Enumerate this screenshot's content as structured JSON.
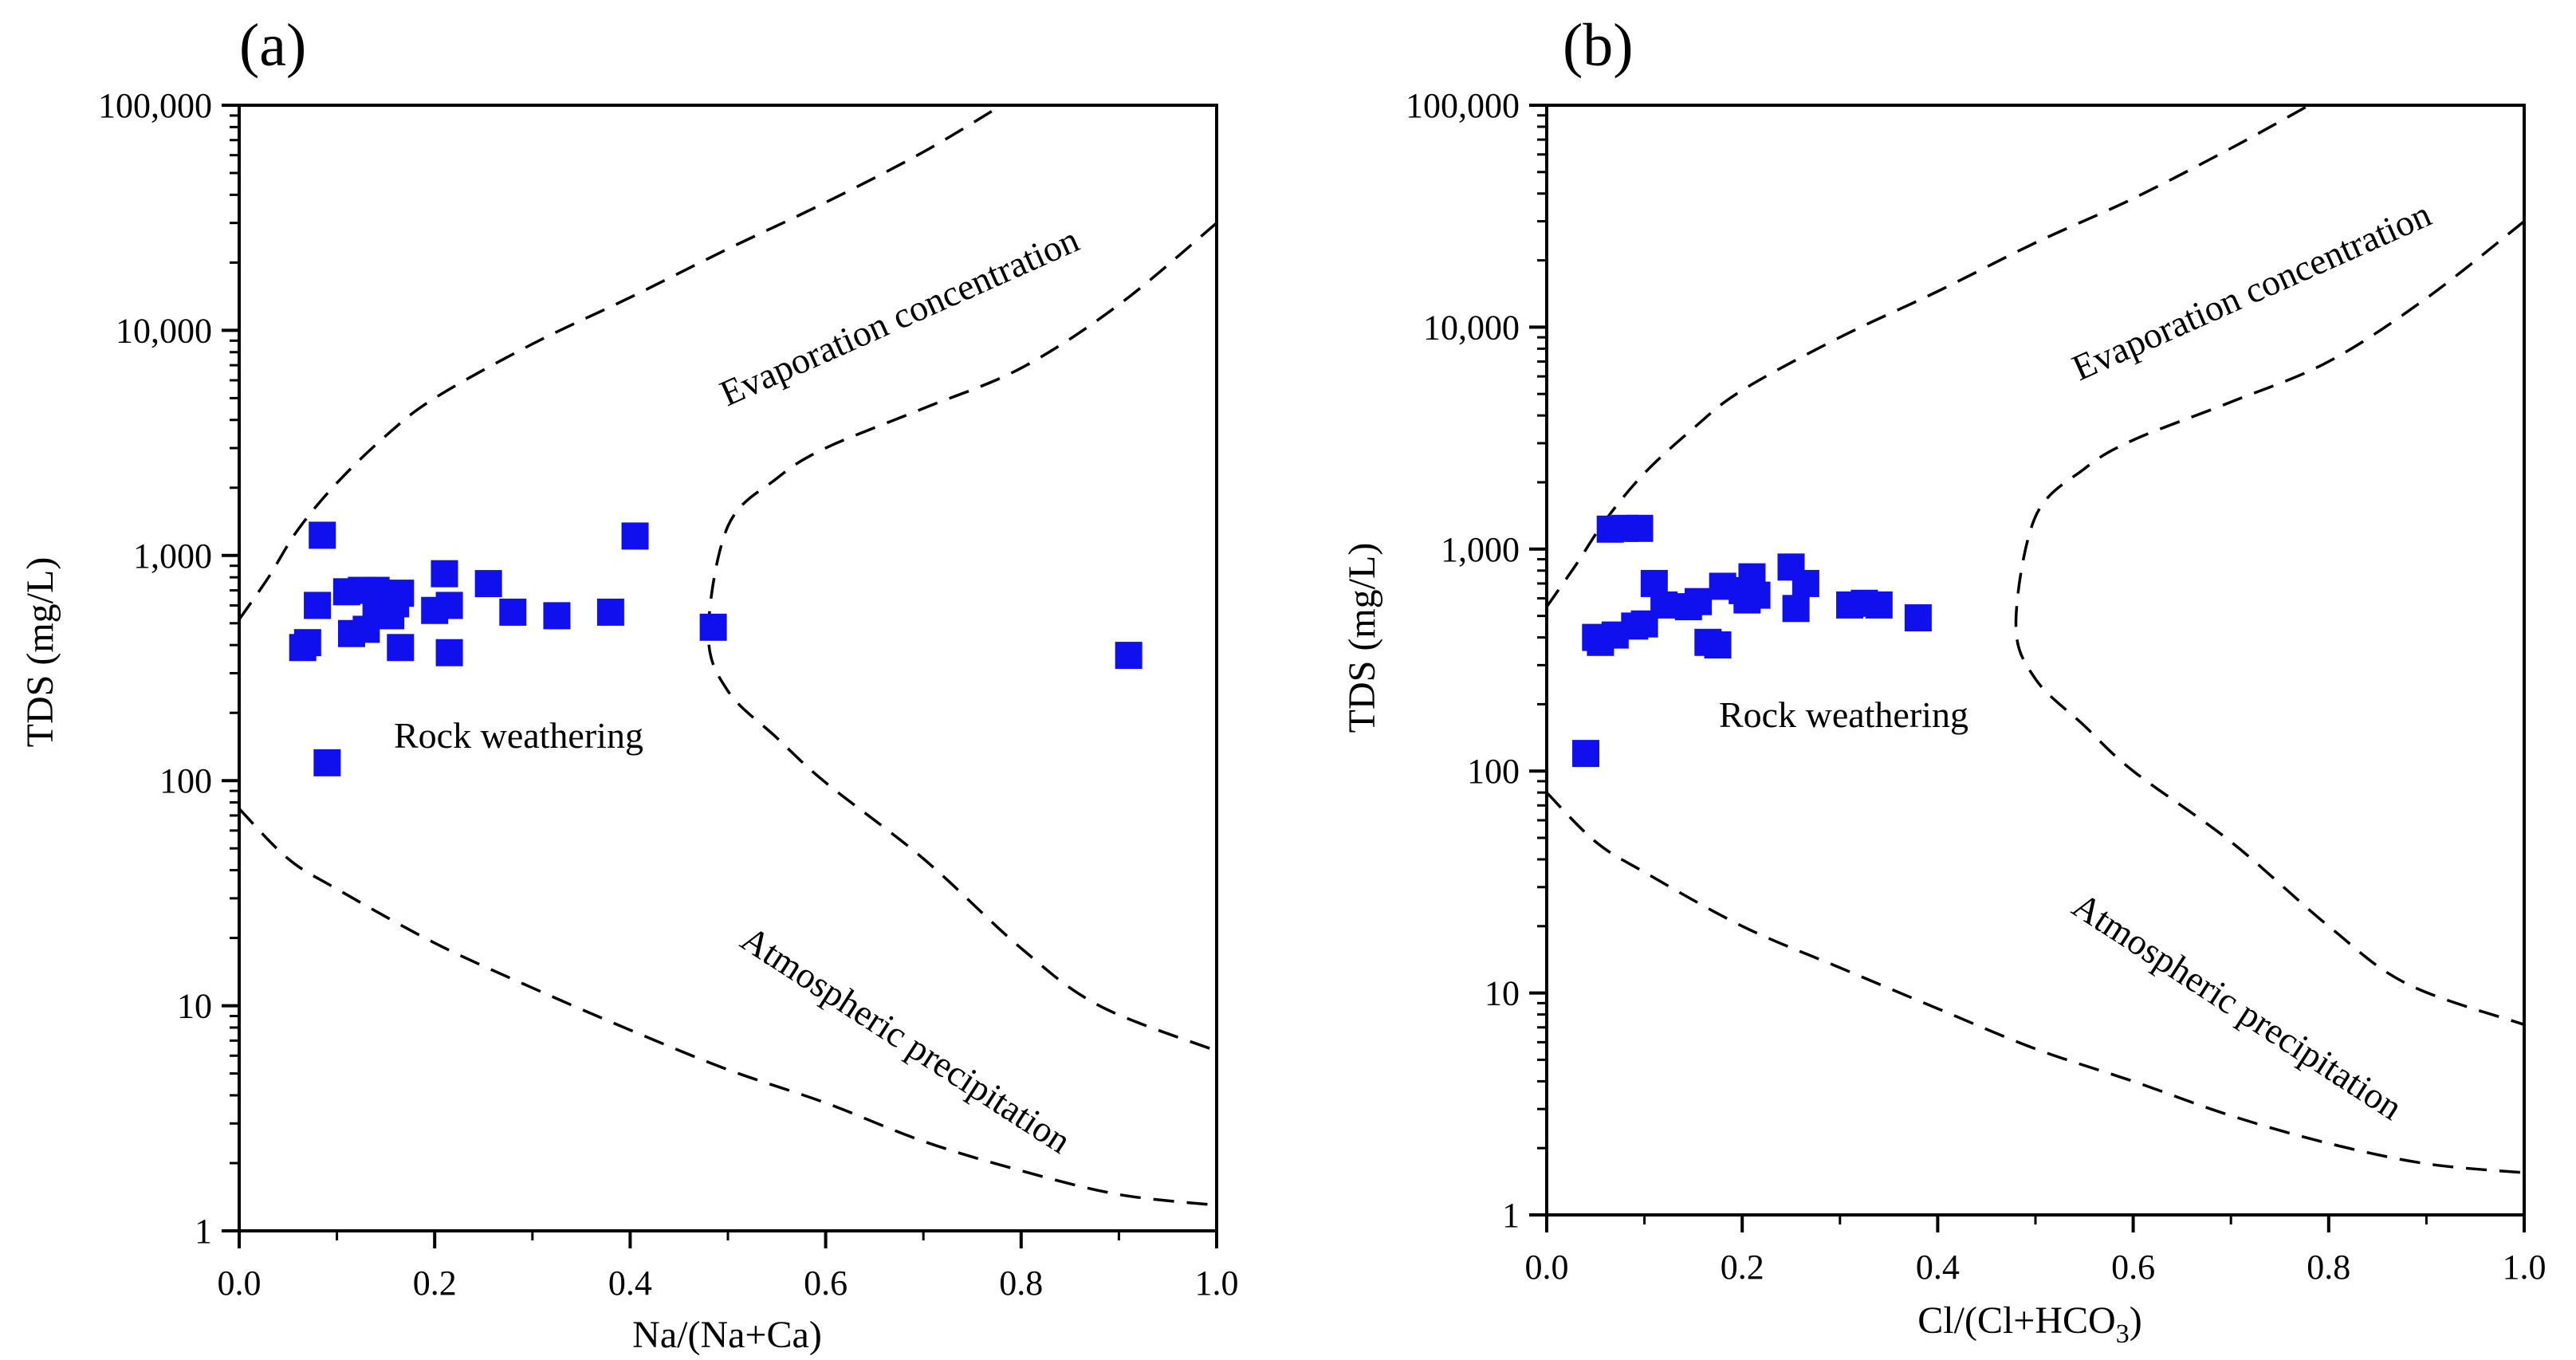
{
  "colors": {
    "point": "#1010ee",
    "axis": "#000000"
  },
  "chart_data": [
    {
      "type": "scatter",
      "panel_label": "(a)",
      "xlabel": "Na/(Na+Ca)",
      "ylabel": "TDS (mg/L)",
      "xlim": [
        0.0,
        1.0
      ],
      "ylim": [
        1,
        100000
      ],
      "yscale": "log",
      "x_ticks": [
        "0.0",
        "0.2",
        "0.4",
        "0.6",
        "0.8",
        "1.0"
      ],
      "y_ticks": [
        "1",
        "10",
        "100",
        "1,000",
        "10,000",
        "100,000"
      ],
      "regions": {
        "evaporation": "Evaporation concentration",
        "rock": "Rock weathering",
        "atmospheric": "Atmospheric precipitation"
      },
      "boundaries": {
        "upper": [
          [
            0.0,
            520
          ],
          [
            0.03,
            800
          ],
          [
            0.06,
            1300
          ],
          [
            0.1,
            2100
          ],
          [
            0.15,
            3400
          ],
          [
            0.2,
            5000
          ],
          [
            0.3,
            8700
          ],
          [
            0.4,
            14000
          ],
          [
            0.5,
            23000
          ],
          [
            0.6,
            37000
          ],
          [
            0.7,
            62000
          ],
          [
            0.78,
            100000
          ]
        ],
        "inner": [
          [
            1.0,
            30000
          ],
          [
            0.9,
            13000
          ],
          [
            0.8,
            6800
          ],
          [
            0.7,
            4500
          ],
          [
            0.6,
            3000
          ],
          [
            0.55,
            2200
          ],
          [
            0.5,
            1350
          ],
          [
            0.48,
            450
          ],
          [
            0.5,
            250
          ],
          [
            0.55,
            155
          ],
          [
            0.6,
            98
          ],
          [
            0.7,
            45
          ],
          [
            0.8,
            18
          ],
          [
            0.88,
            10
          ],
          [
            1.0,
            6.3
          ]
        ],
        "lower": [
          [
            0.0,
            75
          ],
          [
            0.05,
            45
          ],
          [
            0.1,
            33
          ],
          [
            0.2,
            19
          ],
          [
            0.3,
            12
          ],
          [
            0.4,
            7.8
          ],
          [
            0.5,
            5.2
          ],
          [
            0.6,
            3.7
          ],
          [
            0.7,
            2.5
          ],
          [
            0.8,
            1.85
          ],
          [
            0.9,
            1.45
          ],
          [
            1.0,
            1.3
          ]
        ]
      },
      "points": [
        {
          "x": 0.065,
          "y": 390
        },
        {
          "x": 0.07,
          "y": 410
        },
        {
          "x": 0.08,
          "y": 600
        },
        {
          "x": 0.085,
          "y": 1230
        },
        {
          "x": 0.09,
          "y": 120
        },
        {
          "x": 0.11,
          "y": 690
        },
        {
          "x": 0.115,
          "y": 450
        },
        {
          "x": 0.125,
          "y": 700
        },
        {
          "x": 0.13,
          "y": 470
        },
        {
          "x": 0.14,
          "y": 560
        },
        {
          "x": 0.14,
          "y": 700
        },
        {
          "x": 0.145,
          "y": 640
        },
        {
          "x": 0.155,
          "y": 540
        },
        {
          "x": 0.16,
          "y": 610
        },
        {
          "x": 0.165,
          "y": 680
        },
        {
          "x": 0.165,
          "y": 390
        },
        {
          "x": 0.2,
          "y": 570
        },
        {
          "x": 0.21,
          "y": 830
        },
        {
          "x": 0.215,
          "y": 370
        },
        {
          "x": 0.215,
          "y": 600
        },
        {
          "x": 0.255,
          "y": 750
        },
        {
          "x": 0.28,
          "y": 560
        },
        {
          "x": 0.325,
          "y": 540
        },
        {
          "x": 0.38,
          "y": 560
        },
        {
          "x": 0.405,
          "y": 1220
        },
        {
          "x": 0.485,
          "y": 480
        },
        {
          "x": 0.91,
          "y": 360
        }
      ]
    },
    {
      "type": "scatter",
      "panel_label": "(b)",
      "xlabel": "Cl/(Cl+HCO",
      "xlabel_sub": "3",
      "xlabel_end": ")",
      "ylabel": "TDS (mg/L)",
      "xlim": [
        0.0,
        1.0
      ],
      "ylim": [
        1,
        100000
      ],
      "yscale": "log",
      "x_ticks": [
        "0.0",
        "0.2",
        "0.4",
        "0.6",
        "0.8",
        "1.0"
      ],
      "y_ticks": [
        "1",
        "10",
        "100",
        "1,000",
        "10,000",
        "100,000"
      ],
      "regions": {
        "evaporation": "Evaporation concentration",
        "rock": "Rock weathering",
        "atmospheric": "Atmospheric precipitation"
      },
      "boundaries": {
        "upper": [
          [
            0.0,
            550
          ],
          [
            0.03,
            850
          ],
          [
            0.06,
            1350
          ],
          [
            0.1,
            2200
          ],
          [
            0.15,
            3500
          ],
          [
            0.2,
            5200
          ],
          [
            0.3,
            9000
          ],
          [
            0.4,
            14500
          ],
          [
            0.5,
            24000
          ],
          [
            0.6,
            38000
          ],
          [
            0.7,
            64000
          ],
          [
            0.78,
            100000
          ]
        ],
        "inner": [
          [
            1.0,
            30000
          ],
          [
            0.9,
            13500
          ],
          [
            0.8,
            7000
          ],
          [
            0.7,
            4600
          ],
          [
            0.6,
            3100
          ],
          [
            0.55,
            2300
          ],
          [
            0.5,
            1400
          ],
          [
            0.48,
            460
          ],
          [
            0.5,
            260
          ],
          [
            0.55,
            160
          ],
          [
            0.6,
            100
          ],
          [
            0.7,
            48
          ],
          [
            0.8,
            20
          ],
          [
            0.88,
            11
          ],
          [
            1.0,
            7.2
          ]
        ],
        "lower": [
          [
            0.0,
            80
          ],
          [
            0.05,
            48
          ],
          [
            0.1,
            35
          ],
          [
            0.2,
            20
          ],
          [
            0.3,
            13
          ],
          [
            0.4,
            8.5
          ],
          [
            0.5,
            5.6
          ],
          [
            0.6,
            4.0
          ],
          [
            0.7,
            2.8
          ],
          [
            0.8,
            2.1
          ],
          [
            0.9,
            1.7
          ],
          [
            1.0,
            1.55
          ]
        ]
      },
      "points": [
        {
          "x": 0.04,
          "y": 120
        },
        {
          "x": 0.05,
          "y": 400
        },
        {
          "x": 0.055,
          "y": 380
        },
        {
          "x": 0.065,
          "y": 1230
        },
        {
          "x": 0.07,
          "y": 410
        },
        {
          "x": 0.08,
          "y": 1240
        },
        {
          "x": 0.09,
          "y": 450
        },
        {
          "x": 0.095,
          "y": 1240
        },
        {
          "x": 0.1,
          "y": 460
        },
        {
          "x": 0.11,
          "y": 700
        },
        {
          "x": 0.12,
          "y": 560
        },
        {
          "x": 0.145,
          "y": 550
        },
        {
          "x": 0.155,
          "y": 580
        },
        {
          "x": 0.165,
          "y": 380
        },
        {
          "x": 0.175,
          "y": 370
        },
        {
          "x": 0.18,
          "y": 680
        },
        {
          "x": 0.2,
          "y": 650
        },
        {
          "x": 0.205,
          "y": 590
        },
        {
          "x": 0.21,
          "y": 750
        },
        {
          "x": 0.215,
          "y": 620
        },
        {
          "x": 0.25,
          "y": 830
        },
        {
          "x": 0.255,
          "y": 540
        },
        {
          "x": 0.265,
          "y": 700
        },
        {
          "x": 0.31,
          "y": 560
        },
        {
          "x": 0.325,
          "y": 570
        },
        {
          "x": 0.34,
          "y": 560
        },
        {
          "x": 0.38,
          "y": 490
        }
      ]
    }
  ]
}
